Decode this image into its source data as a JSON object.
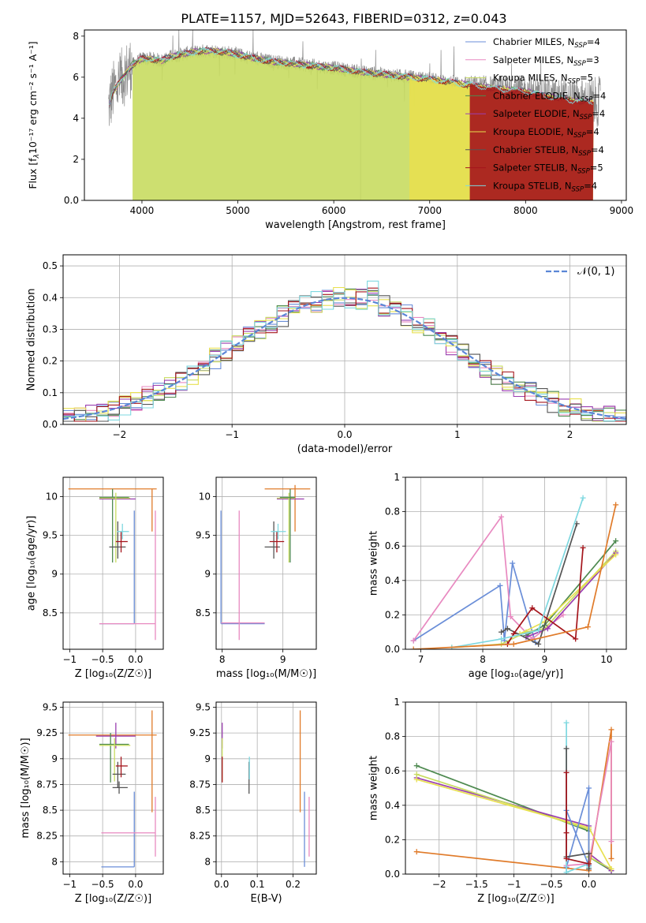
{
  "figure_title": "PLATE=1157, MJD=52643, FIBERID=0312, z=0.043",
  "colors": {
    "Chabrier MILES": "#6a8ed8",
    "Salpeter MILES": "#e889c0",
    "Kroupa MILES": "#c8dc60",
    "Chabrier ELODIE": "#4e8a50",
    "Salpeter ELODIE": "#9b3fb0",
    "Kroupa ELODIE": "#e8e050",
    "Chabrier STELIB": "#555555",
    "Salpeter STELIB": "#a5151c",
    "Kroupa STELIB": "#7ed8e0",
    "orange": "#e07b2a",
    "data": "#8c8c8c",
    "normal": "#5b86d6"
  },
  "chart_data": [
    {
      "id": "spectrum",
      "type": "line",
      "title": "PLATE=1157, MJD=52643, FIBERID=0312, z=0.043",
      "xlabel": "wavelength [Angstrom, rest frame]",
      "ylabel_main": "Flux [f",
      "ylabel_sub": "λ",
      "ylabel_rest": "10⁻¹⁷ erg cm⁻² s⁻¹ A⁻¹]",
      "xlim": [
        3400,
        9050
      ],
      "ylim": [
        0,
        8.3
      ],
      "xticks": [
        4000,
        5000,
        6000,
        7000,
        8000,
        9000
      ],
      "yticks": [
        0,
        2,
        4,
        6,
        8
      ],
      "grid": false,
      "legend_position": "upper-right",
      "series": [
        {
          "name": "Chabrier MILES",
          "nssp": "4"
        },
        {
          "name": "Salpeter MILES",
          "nssp": "3"
        },
        {
          "name": "Kroupa MILES",
          "nssp": "5"
        },
        {
          "name": "Chabrier ELODIE",
          "nssp": "4"
        },
        {
          "name": "Salpeter ELODIE",
          "nssp": "4"
        },
        {
          "name": "Kroupa ELODIE",
          "nssp": "4"
        },
        {
          "name": "Chabrier STELIB",
          "nssp": "4"
        },
        {
          "name": "Salpeter STELIB",
          "nssp": "5"
        },
        {
          "name": "Kroupa STELIB",
          "nssp": "4"
        }
      ],
      "continuum": {
        "x": [
          3650,
          3700,
          3800,
          3900,
          4000,
          4100,
          4200,
          4300,
          4500,
          4700,
          4900,
          5100,
          5300,
          5500,
          5700,
          6000,
          6300,
          6600,
          7000,
          7300,
          7600,
          8000,
          8300,
          8600,
          8750
        ],
        "y": [
          4.5,
          5.3,
          6.0,
          6.6,
          6.9,
          6.9,
          6.8,
          7.0,
          7.2,
          7.3,
          7.2,
          7.0,
          6.8,
          6.7,
          6.6,
          6.45,
          6.25,
          6.1,
          5.9,
          5.7,
          5.5,
          5.3,
          5.0,
          4.8,
          4.8
        ]
      },
      "model_cutoffs": {
        "Kroupa MILES": 3905,
        "Kroupa ELODIE": 6790,
        "Salpeter STELIB": 7420
      }
    },
    {
      "id": "residuals",
      "type": "histogram",
      "xlabel": "(data-model)/error",
      "ylabel": "Normed distribution",
      "xlim": [
        -2.5,
        2.5
      ],
      "ylim": [
        0,
        0.535
      ],
      "xticks": [
        -2,
        -1,
        0,
        1,
        2
      ],
      "yticks": [
        0.0,
        0.1,
        0.2,
        0.3,
        0.4,
        0.5
      ],
      "grid": true,
      "legend": "𝒩(0, 1)",
      "legend_position": "upper-right",
      "bin_width": 0.1
    },
    {
      "id": "age-vs-Z",
      "type": "errorbar",
      "xlabel": "Z [log₁₀(Z/Z☉)]",
      "ylabel": "age  [log₁₀(age/yr)]",
      "xlim": [
        -1.1,
        0.42
      ],
      "ylim": [
        8.03,
        10.25
      ],
      "xticks": [
        -1.0,
        -0.5,
        0.0
      ],
      "yticks": [
        8.5,
        9.0,
        9.5,
        10.0
      ],
      "grid": true,
      "points": [
        {
          "s": "orange",
          "x": -0.35,
          "xlo": -1.02,
          "xhi": 0.32,
          "y": 10.1,
          "ylo": 10.1,
          "yhi": 10.1
        },
        {
          "s": "orange",
          "x": 0.25,
          "xlo": 0.25,
          "xhi": 0.25,
          "y": 9.82,
          "ylo": 9.55,
          "yhi": 10.1
        },
        {
          "s": "Salpeter ELODIE",
          "x": -0.3,
          "xlo": -0.55,
          "xhi": 0.0,
          "y": 9.97,
          "ylo": 9.97,
          "yhi": 9.97
        },
        {
          "s": "Chabrier ELODIE",
          "x": -0.35,
          "xlo": -0.55,
          "xhi": -0.1,
          "y": 9.99,
          "ylo": 9.15,
          "yhi": 10.1
        },
        {
          "s": "Kroupa MILES",
          "x": -0.3,
          "xlo": -0.55,
          "xhi": -0.08,
          "y": 9.98,
          "ylo": 9.15,
          "yhi": 10.05
        },
        {
          "s": "Chabrier STELIB",
          "x": -0.27,
          "xlo": -0.4,
          "xhi": -0.15,
          "y": 9.35,
          "ylo": 9.2,
          "yhi": 9.68
        },
        {
          "s": "Salpeter STELIB",
          "x": -0.22,
          "xlo": -0.3,
          "xhi": -0.12,
          "y": 9.42,
          "ylo": 9.28,
          "yhi": 9.55
        },
        {
          "s": "Kroupa STELIB",
          "x": -0.2,
          "xlo": -0.28,
          "xhi": -0.1,
          "y": 9.55,
          "ylo": 9.45,
          "yhi": 9.65
        },
        {
          "s": "Chabrier MILES",
          "x": -0.02,
          "xlo": -0.02,
          "xhi": -0.02,
          "y": 8.36,
          "ylo": 8.36,
          "yhi": 9.82
        },
        {
          "s": "Chabrier MILES",
          "x": -0.3,
          "xlo": -0.55,
          "xhi": -0.02,
          "y": 8.36,
          "ylo": 8.36,
          "yhi": 8.36
        },
        {
          "s": "Salpeter MILES",
          "x": -0.3,
          "xlo": -0.55,
          "xhi": 0.3,
          "y": 8.36,
          "ylo": 8.36,
          "yhi": 8.36
        },
        {
          "s": "Salpeter MILES",
          "x": 0.3,
          "xlo": 0.3,
          "xhi": 0.3,
          "y": 9.0,
          "ylo": 8.15,
          "yhi": 9.82
        }
      ]
    },
    {
      "id": "age-vs-mass",
      "type": "errorbar",
      "xlabel": "mass [log₁₀(M/M☉)]",
      "ylabel": "",
      "xlim": [
        7.9,
        9.55
      ],
      "ylim": [
        8.03,
        10.25
      ],
      "xticks": [
        8,
        9
      ],
      "yticks": [
        8.5,
        9.0,
        9.5,
        10.0
      ],
      "grid": true,
      "points": [
        {
          "s": "orange",
          "x": 9.0,
          "xlo": 8.7,
          "xhi": 9.45,
          "y": 10.1,
          "ylo": 10.1,
          "yhi": 10.1
        },
        {
          "s": "orange",
          "x": 9.2,
          "xlo": 9.2,
          "xhi": 9.2,
          "y": 9.8,
          "ylo": 9.55,
          "yhi": 10.15
        },
        {
          "s": "Salpeter ELODIE",
          "x": 9.1,
          "xlo": 8.9,
          "xhi": 9.35,
          "y": 9.97,
          "ylo": 9.97,
          "yhi": 9.97
        },
        {
          "s": "Kroupa MILES",
          "x": 9.1,
          "xlo": 8.9,
          "xhi": 9.2,
          "y": 9.98,
          "ylo": 9.15,
          "yhi": 10.05
        },
        {
          "s": "Chabrier ELODIE",
          "x": 9.12,
          "xlo": 8.95,
          "xhi": 9.2,
          "y": 9.99,
          "ylo": 9.15,
          "yhi": 10.1
        },
        {
          "s": "Chabrier STELIB",
          "x": 8.85,
          "xlo": 8.7,
          "xhi": 8.95,
          "y": 9.35,
          "ylo": 9.2,
          "yhi": 9.68
        },
        {
          "s": "Salpeter STELIB",
          "x": 8.9,
          "xlo": 8.78,
          "xhi": 9.02,
          "y": 9.42,
          "ylo": 9.28,
          "yhi": 9.55
        },
        {
          "s": "Kroupa STELIB",
          "x": 8.92,
          "xlo": 8.8,
          "xhi": 9.05,
          "y": 9.55,
          "ylo": 9.45,
          "yhi": 9.65
        },
        {
          "s": "Chabrier MILES",
          "x": 7.98,
          "xlo": 7.98,
          "xhi": 7.98,
          "y": 8.36,
          "ylo": 8.36,
          "yhi": 9.82
        },
        {
          "s": "Chabrier MILES",
          "x": 8.2,
          "xlo": 7.98,
          "xhi": 8.7,
          "y": 8.36,
          "ylo": 8.36,
          "yhi": 8.36
        },
        {
          "s": "Salpeter MILES",
          "x": 8.28,
          "xlo": 8.28,
          "xhi": 8.28,
          "y": 8.36,
          "ylo": 8.15,
          "yhi": 9.82
        },
        {
          "s": "Salpeter MILES",
          "x": 8.4,
          "xlo": 7.98,
          "xhi": 8.7,
          "y": 8.37,
          "ylo": 8.37,
          "yhi": 8.37
        }
      ]
    },
    {
      "id": "weight-vs-age",
      "type": "line",
      "xlabel": "age  [log₁₀(age/yr)]",
      "ylabel": "mass weight",
      "xlim": [
        6.75,
        10.32
      ],
      "ylim": [
        0,
        1.0
      ],
      "xticks": [
        7,
        8,
        9,
        10
      ],
      "yticks": [
        0.0,
        0.2,
        0.4,
        0.6,
        0.8,
        1.0
      ],
      "grid": true,
      "series": [
        {
          "s": "Chabrier MILES",
          "x": [
            6.88,
            8.28,
            8.35,
            8.48,
            8.85
          ],
          "y": [
            0.05,
            0.37,
            0.05,
            0.5,
            0.04
          ]
        },
        {
          "s": "Salpeter MILES",
          "x": [
            6.88,
            8.3,
            8.45,
            8.8,
            9.3
          ],
          "y": [
            0.05,
            0.77,
            0.19,
            0.06,
            0.2
          ]
        },
        {
          "s": "Kroupa MILES",
          "x": [
            7.5,
            8.3,
            8.7,
            9.0,
            10.15
          ],
          "y": [
            0.01,
            0.03,
            0.1,
            0.12,
            0.57
          ]
        },
        {
          "s": "Chabrier ELODIE",
          "x": [
            8.7,
            9.0,
            10.15
          ],
          "y": [
            0.08,
            0.14,
            0.63
          ]
        },
        {
          "s": "Salpeter ELODIE",
          "x": [
            8.7,
            9.05,
            10.15
          ],
          "y": [
            0.07,
            0.12,
            0.56
          ]
        },
        {
          "s": "Kroupa ELODIE",
          "x": [
            8.6,
            9.0,
            10.15
          ],
          "y": [
            0.09,
            0.16,
            0.55
          ]
        },
        {
          "s": "Chabrier STELIB",
          "x": [
            8.3,
            8.4,
            8.9,
            9.52
          ],
          "y": [
            0.1,
            0.12,
            0.03,
            0.73
          ]
        },
        {
          "s": "Salpeter STELIB",
          "x": [
            8.4,
            8.5,
            8.8,
            9.5,
            9.62
          ],
          "y": [
            0.03,
            0.09,
            0.24,
            0.06,
            0.59
          ]
        },
        {
          "s": "Kroupa STELIB",
          "x": [
            7.5,
            8.3,
            8.9,
            9.62
          ],
          "y": [
            0.01,
            0.06,
            0.11,
            0.88
          ]
        },
        {
          "s": "orange",
          "x": [
            6.88,
            8.5,
            9.7,
            10.15
          ],
          "y": [
            0.0,
            0.03,
            0.13,
            0.84
          ]
        }
      ]
    },
    {
      "id": "mass-vs-Z",
      "type": "errorbar",
      "xlabel": "Z [log₁₀(Z/Z☉)]",
      "ylabel": "mass [log₁₀(M/M☉)]",
      "xlim": [
        -1.1,
        0.42
      ],
      "ylim": [
        7.88,
        9.55
      ],
      "xticks": [
        -1.0,
        -0.5,
        0.0
      ],
      "yticks": [
        8.0,
        8.25,
        8.5,
        8.75,
        9.0,
        9.25,
        9.5
      ],
      "grid": true,
      "points": [
        {
          "s": "orange",
          "x": -0.35,
          "xlo": -1.02,
          "xhi": 0.32,
          "y": 9.23,
          "ylo": 9.23,
          "yhi": 9.23
        },
        {
          "s": "orange",
          "x": 0.25,
          "xlo": 0.25,
          "xhi": 0.25,
          "y": 8.95,
          "ylo": 8.48,
          "yhi": 9.47
        },
        {
          "s": "Salpeter ELODIE",
          "x": -0.3,
          "xlo": -0.6,
          "xhi": 0.0,
          "y": 9.22,
          "ylo": 9.1,
          "yhi": 9.35
        },
        {
          "s": "Chabrier ELODIE",
          "x": -0.38,
          "xlo": -0.55,
          "xhi": -0.1,
          "y": 9.14,
          "ylo": 8.77,
          "yhi": 9.25
        },
        {
          "s": "Kroupa MILES",
          "x": -0.32,
          "xlo": -0.55,
          "xhi": -0.08,
          "y": 9.13,
          "ylo": 8.78,
          "yhi": 9.2
        },
        {
          "s": "Chabrier STELIB",
          "x": -0.27,
          "xlo": -0.35,
          "xhi": -0.15,
          "y": 8.85,
          "ylo": 8.72,
          "yhi": 8.97
        },
        {
          "s": "Salpeter STELIB",
          "x": -0.22,
          "xlo": -0.3,
          "xhi": -0.12,
          "y": 8.93,
          "ylo": 8.82,
          "yhi": 9.02
        },
        {
          "s": "Chabrier STELIB",
          "x": -0.25,
          "xlo": -0.35,
          "xhi": -0.12,
          "y": 8.72,
          "ylo": 8.66,
          "yhi": 8.78
        },
        {
          "s": "Chabrier MILES",
          "x": -0.02,
          "xlo": -0.02,
          "xhi": -0.02,
          "y": 7.95,
          "ylo": 7.95,
          "yhi": 8.68
        },
        {
          "s": "Chabrier MILES",
          "x": -0.3,
          "xlo": -0.52,
          "xhi": -0.02,
          "y": 7.95,
          "ylo": 7.95,
          "yhi": 7.95
        },
        {
          "s": "Salpeter MILES",
          "x": -0.1,
          "xlo": -0.52,
          "xhi": 0.3,
          "y": 8.28,
          "ylo": 8.28,
          "yhi": 8.28
        },
        {
          "s": "Salpeter MILES",
          "x": 0.3,
          "xlo": 0.3,
          "xhi": 0.3,
          "y": 8.28,
          "ylo": 8.05,
          "yhi": 8.63
        }
      ]
    },
    {
      "id": "mass-vs-EBV",
      "type": "errorbar",
      "xlabel": "E(B-V)",
      "ylabel": "",
      "xlim": [
        -0.015,
        0.265
      ],
      "ylim": [
        7.88,
        9.55
      ],
      "xticks": [
        0.0,
        0.1,
        0.2
      ],
      "yticks": [
        8.0,
        8.25,
        8.5,
        8.75,
        9.0,
        9.25,
        9.5
      ],
      "grid": true,
      "points": [
        {
          "s": "orange",
          "x": 0.22,
          "xlo": 0.22,
          "xhi": 0.22,
          "y": 8.95,
          "ylo": 8.48,
          "yhi": 9.47
        },
        {
          "s": "Salpeter ELODIE",
          "x": 0.002,
          "xlo": 0.002,
          "xhi": 0.002,
          "y": 9.22,
          "ylo": 9.1,
          "yhi": 9.35
        },
        {
          "s": "Kroupa MILES",
          "x": 0.002,
          "xlo": 0.002,
          "xhi": 0.002,
          "y": 9.13,
          "ylo": 8.78,
          "yhi": 9.2
        },
        {
          "s": "Salpeter STELIB",
          "x": 0.002,
          "xlo": 0.002,
          "xhi": 0.002,
          "y": 8.9,
          "ylo": 8.77,
          "yhi": 9.02
        },
        {
          "s": "Chabrier STELIB",
          "x": 0.077,
          "xlo": 0.077,
          "xhi": 0.077,
          "y": 8.8,
          "ylo": 8.66,
          "yhi": 8.97
        },
        {
          "s": "Kroupa STELIB",
          "x": 0.078,
          "xlo": 0.078,
          "xhi": 0.078,
          "y": 8.9,
          "ylo": 8.8,
          "yhi": 9.02
        },
        {
          "s": "Chabrier MILES",
          "x": 0.232,
          "xlo": 0.232,
          "xhi": 0.232,
          "y": 8.3,
          "ylo": 7.95,
          "yhi": 8.68
        },
        {
          "s": "Salpeter MILES",
          "x": 0.245,
          "xlo": 0.245,
          "xhi": 0.245,
          "y": 8.3,
          "ylo": 8.05,
          "yhi": 8.63
        }
      ]
    },
    {
      "id": "weight-vs-Z",
      "type": "line",
      "xlabel": "Z [log₁₀(Z/Z☉)]",
      "ylabel": "mass weight",
      "xlim": [
        -2.45,
        0.5
      ],
      "ylim": [
        0,
        1.0
      ],
      "xticks": [
        -2.0,
        -1.5,
        -1.0,
        -0.5,
        0.0
      ],
      "yticks": [
        0.0,
        0.2,
        0.4,
        0.6,
        0.8,
        1.0
      ],
      "grid": true,
      "series": [
        {
          "s": "Chabrier ELODIE",
          "x": [
            -2.3,
            0.0,
            0.0,
            0.3
          ],
          "y": [
            0.63,
            0.25,
            0.1,
            0.02
          ]
        },
        {
          "s": "Salpeter ELODIE",
          "x": [
            -2.3,
            0.0,
            0.0,
            0.3
          ],
          "y": [
            0.56,
            0.28,
            0.12,
            0.02
          ]
        },
        {
          "s": "Kroupa MILES",
          "x": [
            -2.3,
            0.0,
            0.0,
            0.3
          ],
          "y": [
            0.58,
            0.26,
            0.1,
            0.03
          ]
        },
        {
          "s": "Kroupa ELODIE",
          "x": [
            -2.3,
            0.0,
            0.3
          ],
          "y": [
            0.55,
            0.27,
            0.03
          ]
        },
        {
          "s": "orange",
          "x": [
            -2.3,
            0.0,
            0.3,
            0.3
          ],
          "y": [
            0.13,
            0.02,
            0.84,
            0.09
          ]
        },
        {
          "s": "Chabrier MILES",
          "x": [
            -0.3,
            0.0,
            0.0,
            -0.3
          ],
          "y": [
            0.04,
            0.5,
            0.05,
            0.37
          ]
        },
        {
          "s": "Salpeter MILES",
          "x": [
            -0.3,
            0.0,
            0.3,
            0.3
          ],
          "y": [
            0.05,
            0.06,
            0.77,
            0.19
          ]
        },
        {
          "s": "Kroupa STELIB",
          "x": [
            -0.3,
            -0.3,
            0.0,
            0.0
          ],
          "y": [
            0.88,
            0.01,
            0.06,
            0.04
          ]
        },
        {
          "s": "Chabrier STELIB",
          "x": [
            -0.3,
            -0.3,
            0.0,
            0.0
          ],
          "y": [
            0.73,
            0.1,
            0.12,
            0.03
          ]
        },
        {
          "s": "Salpeter STELIB",
          "x": [
            -0.3,
            -0.3,
            -0.3,
            0.0
          ],
          "y": [
            0.59,
            0.24,
            0.09,
            0.06
          ]
        }
      ]
    }
  ]
}
